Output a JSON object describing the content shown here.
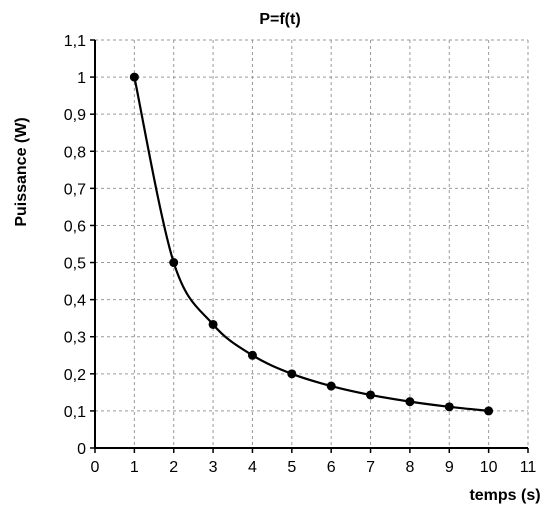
{
  "chart_data": {
    "type": "line",
    "title": "P=f(t)",
    "xlabel": "temps (s)",
    "ylabel": "Puissance (W)",
    "xlim": [
      0,
      11
    ],
    "ylim": [
      0,
      1.1
    ],
    "x_ticks": [
      "0",
      "1",
      "2",
      "3",
      "4",
      "5",
      "6",
      "7",
      "8",
      "9",
      "10",
      "11"
    ],
    "y_ticks": [
      "0",
      "0,1",
      "0,2",
      "0,3",
      "0,4",
      "0,5",
      "0,6",
      "0,7",
      "0,8",
      "0,9",
      "1",
      "1,1"
    ],
    "grid": true,
    "legend": "none",
    "series": [
      {
        "x": [
          1,
          2,
          3,
          4,
          5,
          6,
          7,
          8,
          9,
          10
        ],
        "y": [
          1,
          0.5,
          0.333,
          0.25,
          0.2,
          0.167,
          0.143,
          0.125,
          0.111,
          0.1
        ],
        "line_color": "#000000",
        "marker_color": "#000000"
      }
    ]
  }
}
